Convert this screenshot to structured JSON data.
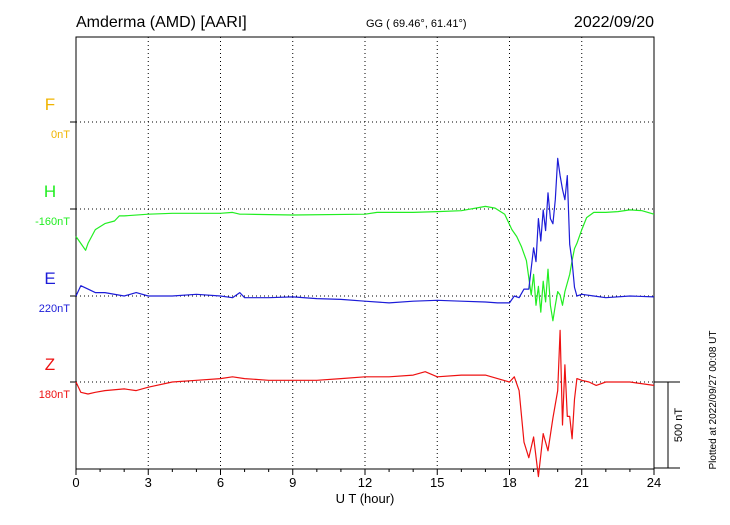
{
  "header": {
    "station": "Amderma (AMD)  [AARI]",
    "coords": "GG ( 69.46°,  61.41°)",
    "date": "2022/09/20"
  },
  "footer_note": "Plotted at 2022/09/27 00:08 UT",
  "chart_data": {
    "type": "line",
    "xlabel": "U T (hour)",
    "xlim": [
      0,
      24
    ],
    "xticks": [
      "0",
      "3",
      "6",
      "9",
      "12",
      "15",
      "18",
      "21",
      "24"
    ],
    "grid": true,
    "scale_bar": {
      "label": "500 nT",
      "value_nT": 500
    },
    "series": [
      {
        "name": "F",
        "baseline_label": "0nT",
        "color": "#f0b400",
        "x": [],
        "y": []
      },
      {
        "name": "H",
        "baseline_label": "-160nT",
        "color": "#22ee22",
        "x": [
          0,
          0.2,
          0.4,
          0.5,
          0.8,
          1.2,
          1.6,
          1.8,
          2.0,
          3.0,
          4.0,
          5.0,
          6.0,
          6.5,
          6.8,
          7.0,
          9.0,
          12.0,
          12.5,
          14.0,
          15.0,
          16.0,
          17.0,
          17.4,
          17.8,
          18.1,
          18.3,
          18.5,
          18.7,
          18.9,
          19.0,
          19.1,
          19.2,
          19.3,
          19.4,
          19.5,
          19.6,
          19.7,
          19.8,
          19.9,
          20.0,
          20.1,
          20.2,
          20.3,
          20.4,
          20.5,
          20.6,
          20.7,
          20.8,
          21.0,
          21.2,
          21.5,
          22.0,
          22.5,
          23.0,
          23.5,
          24.0
        ],
        "y": [
          -160,
          -200,
          -240,
          -200,
          -120,
          -85,
          -70,
          -40,
          -40,
          -30,
          -25,
          -25,
          -25,
          -20,
          -30,
          -30,
          -35,
          -30,
          -20,
          -20,
          -15,
          -10,
          15,
          5,
          -30,
          -120,
          -160,
          -220,
          -300,
          -500,
          -380,
          -560,
          -450,
          -600,
          -420,
          -540,
          -350,
          -560,
          -650,
          -560,
          -480,
          -500,
          -560,
          -480,
          -430,
          -380,
          -300,
          -230,
          -200,
          -120,
          -50,
          -20,
          -20,
          -15,
          -5,
          -10,
          -30
        ]
      },
      {
        "name": "E",
        "baseline_label": "220nT",
        "color": "#1c1cd8",
        "x": [
          0,
          0.2,
          0.5,
          0.8,
          1.2,
          2.0,
          2.5,
          3.0,
          4.0,
          5.0,
          6.0,
          6.5,
          6.8,
          7.0,
          8.0,
          9.0,
          10.0,
          11.0,
          12.0,
          13.0,
          14.0,
          15.0,
          16.0,
          17.0,
          17.5,
          18.0,
          18.2,
          18.4,
          18.6,
          18.8,
          19.0,
          19.1,
          19.2,
          19.3,
          19.4,
          19.5,
          19.6,
          19.7,
          19.8,
          19.9,
          20.0,
          20.1,
          20.2,
          20.3,
          20.4,
          20.5,
          20.6,
          20.7,
          20.8,
          21.0,
          21.5,
          22.0,
          23.0,
          24.0
        ],
        "y": [
          0,
          60,
          40,
          20,
          20,
          0,
          20,
          0,
          0,
          10,
          0,
          -10,
          20,
          -10,
          -10,
          -5,
          -15,
          -20,
          -30,
          -40,
          -30,
          -25,
          -30,
          -35,
          -40,
          -40,
          0,
          -10,
          40,
          40,
          280,
          200,
          450,
          320,
          500,
          380,
          600,
          450,
          420,
          560,
          800,
          700,
          620,
          560,
          700,
          300,
          200,
          50,
          0,
          10,
          0,
          -10,
          0,
          -5
        ]
      },
      {
        "name": "Z",
        "baseline_label": "180nT",
        "color": "#ee1111",
        "x": [
          0,
          0.2,
          0.5,
          0.8,
          1.2,
          2.0,
          2.5,
          3.0,
          4.0,
          5.0,
          6.0,
          6.5,
          7.0,
          8.0,
          9.0,
          10.0,
          11.0,
          12.0,
          13.0,
          14.0,
          14.5,
          15.0,
          16.0,
          17.0,
          17.5,
          18.0,
          18.2,
          18.4,
          18.6,
          18.8,
          19.0,
          19.2,
          19.4,
          19.6,
          19.8,
          20.0,
          20.1,
          20.2,
          20.3,
          20.4,
          20.5,
          20.6,
          20.7,
          20.8,
          21.0,
          21.3,
          21.6,
          22.0,
          23.0,
          24.0
        ],
        "y": [
          0,
          -60,
          -70,
          -60,
          -50,
          -40,
          -50,
          -30,
          0,
          10,
          20,
          30,
          20,
          10,
          10,
          10,
          20,
          30,
          30,
          40,
          60,
          30,
          40,
          40,
          20,
          0,
          30,
          -50,
          -350,
          -440,
          -320,
          -550,
          -300,
          -400,
          -210,
          -50,
          300,
          -250,
          100,
          -200,
          -200,
          -330,
          -100,
          20,
          10,
          0,
          -20,
          0,
          0,
          -20
        ]
      }
    ]
  }
}
